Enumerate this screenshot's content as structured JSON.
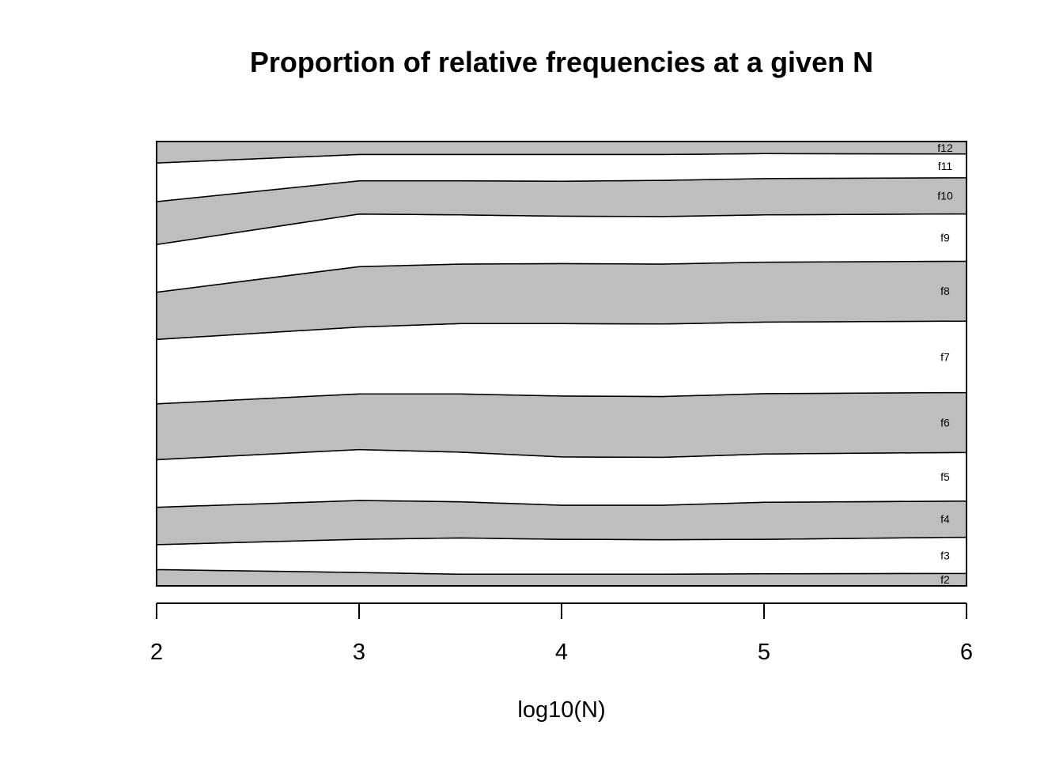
{
  "chart_data": {
    "type": "area",
    "stacked": true,
    "normalized": true,
    "title": "Proportion of relative frequencies at a given N",
    "xlabel": "log10(N)",
    "ylabel": "",
    "x": [
      2,
      3,
      3.5,
      4,
      4.5,
      5,
      6
    ],
    "xlim": [
      2,
      6
    ],
    "ylim": [
      0,
      1
    ],
    "xticks": [
      2,
      3,
      4,
      5,
      6
    ],
    "series": [
      {
        "name": "f2",
        "values": [
          0.038,
          0.031,
          0.027,
          0.027,
          0.027,
          0.028,
          0.029
        ],
        "fill": "#bebebe"
      },
      {
        "name": "f3",
        "values": [
          0.058,
          0.077,
          0.084,
          0.081,
          0.08,
          0.08,
          0.084
        ],
        "fill": "#ffffff"
      },
      {
        "name": "f4",
        "values": [
          0.087,
          0.09,
          0.084,
          0.079,
          0.08,
          0.086,
          0.084
        ],
        "fill": "#bebebe"
      },
      {
        "name": "f5",
        "values": [
          0.111,
          0.118,
          0.115,
          0.112,
          0.111,
          0.112,
          0.113
        ],
        "fill": "#ffffff"
      },
      {
        "name": "f6",
        "values": [
          0.13,
          0.129,
          0.135,
          0.141,
          0.141,
          0.14,
          0.139
        ],
        "fill": "#bebebe"
      },
      {
        "name": "f7",
        "values": [
          0.15,
          0.155,
          0.163,
          0.168,
          0.168,
          0.166,
          0.166
        ],
        "fill": "#ffffff"
      },
      {
        "name": "f8",
        "values": [
          0.11,
          0.14,
          0.138,
          0.139,
          0.139,
          0.139,
          0.139
        ],
        "fill": "#bebebe"
      },
      {
        "name": "f9",
        "values": [
          0.111,
          0.122,
          0.114,
          0.11,
          0.11,
          0.11,
          0.11
        ],
        "fill": "#ffffff"
      },
      {
        "name": "f10",
        "values": [
          0.1,
          0.077,
          0.079,
          0.081,
          0.084,
          0.084,
          0.084
        ],
        "fill": "#bebebe"
      },
      {
        "name": "f11",
        "values": [
          0.09,
          0.061,
          0.061,
          0.062,
          0.06,
          0.058,
          0.055
        ],
        "fill": "#ffffff"
      },
      {
        "name": "f12",
        "values": [
          0.05,
          0.03,
          0.03,
          0.03,
          0.03,
          0.028,
          0.029
        ],
        "fill": "#bebebe"
      }
    ],
    "grid": false,
    "legend": "series labels at right edge inside plot"
  }
}
